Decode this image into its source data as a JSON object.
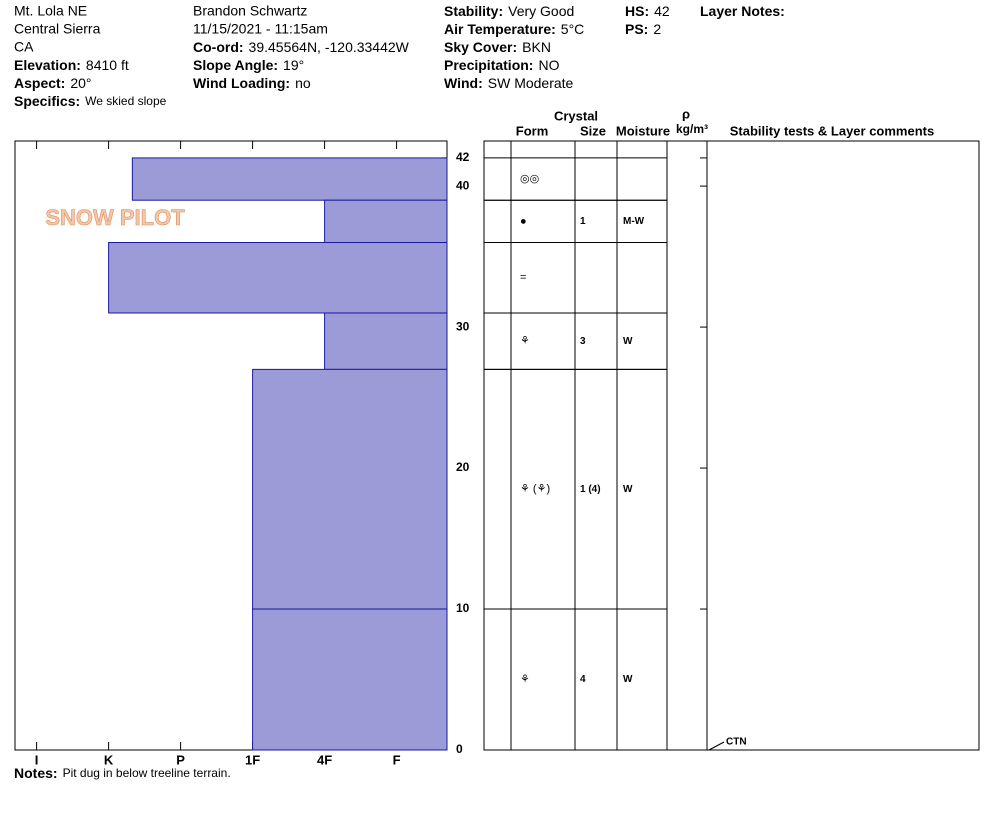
{
  "header": {
    "columns": [
      [
        {
          "text": "Mt. Lola NE"
        },
        {
          "text": "Central Sierra"
        },
        {
          "text": "CA"
        },
        {
          "label": "Elevation:",
          "value": "8410 ft"
        },
        {
          "label": "Aspect:",
          "value": "20°"
        },
        {
          "label": "Specifics:",
          "value": "We skied slope"
        }
      ],
      [
        {
          "text": "Brandon Schwartz"
        },
        {
          "text": "11/15/2021 - 11:15am"
        },
        {
          "label": "Co-ord:",
          "value": "39.45564N, -120.33442W"
        },
        {
          "label": "Slope Angle:",
          "value": "19°"
        },
        {
          "label": "Wind Loading:",
          "value": "no"
        }
      ],
      [
        {
          "label": "Stability:",
          "value": "Very Good"
        },
        {
          "label": "Air Temperature:",
          "value": "5°C"
        },
        {
          "label": "Sky Cover:",
          "value": "BKN"
        },
        {
          "label": "Precipitation:",
          "value": "NO"
        },
        {
          "label": "Wind:",
          "value": "SW Moderate"
        }
      ],
      [
        {
          "label": "HS:",
          "value": "42"
        },
        {
          "label": "PS:",
          "value": "2"
        }
      ],
      [
        {
          "label": "Layer Notes:"
        }
      ]
    ]
  },
  "logo": "SNOW PILOT",
  "chart_data": {
    "type": "profile",
    "xlim": [
      6.3,
      0.3
    ],
    "xticks": [
      {
        "value": 6,
        "label": "I"
      },
      {
        "value": 5,
        "label": "K"
      },
      {
        "value": 4,
        "label": "P"
      },
      {
        "value": 3,
        "label": "1F"
      },
      {
        "value": 2,
        "label": "4F"
      },
      {
        "value": 1,
        "label": "F"
      }
    ],
    "ylim": [
      0,
      43.2
    ],
    "yticks": [
      0,
      10,
      20,
      30,
      40,
      42
    ],
    "color": "#9b9bd7",
    "layers": [
      {
        "top": 42,
        "bottom": 39,
        "hardness": 4.67,
        "form": "◎◎"
      },
      {
        "top": 39,
        "bottom": 36,
        "hardness": 2,
        "form": "●",
        "size": "1",
        "moisture": "M-W"
      },
      {
        "top": 36,
        "bottom": 31,
        "hardness": 5,
        "form": "="
      },
      {
        "top": 31,
        "bottom": 27,
        "hardness": 2,
        "form": "⚘",
        "size": "3",
        "moisture": "W"
      },
      {
        "top": 27,
        "bottom": 10,
        "hardness": 3,
        "form": "⚘ (⚘)",
        "size": "1 (4)",
        "moisture": "W"
      },
      {
        "top": 10,
        "bottom": 0,
        "hardness": 3,
        "form": "⚘",
        "size": "4",
        "moisture": "W"
      }
    ],
    "columns": {
      "crystal": "Crystal",
      "form": "Form",
      "size": "Size",
      "moisture": "Moisture",
      "density": "ρ",
      "density_unit": "kg/m³",
      "comments": "Stability tests & Layer comments"
    },
    "stability_tests": [
      {
        "text": "CTN",
        "depth": 0
      }
    ]
  },
  "notes": {
    "label": "Notes:",
    "value": "Pit dug in below treeline terrain."
  }
}
